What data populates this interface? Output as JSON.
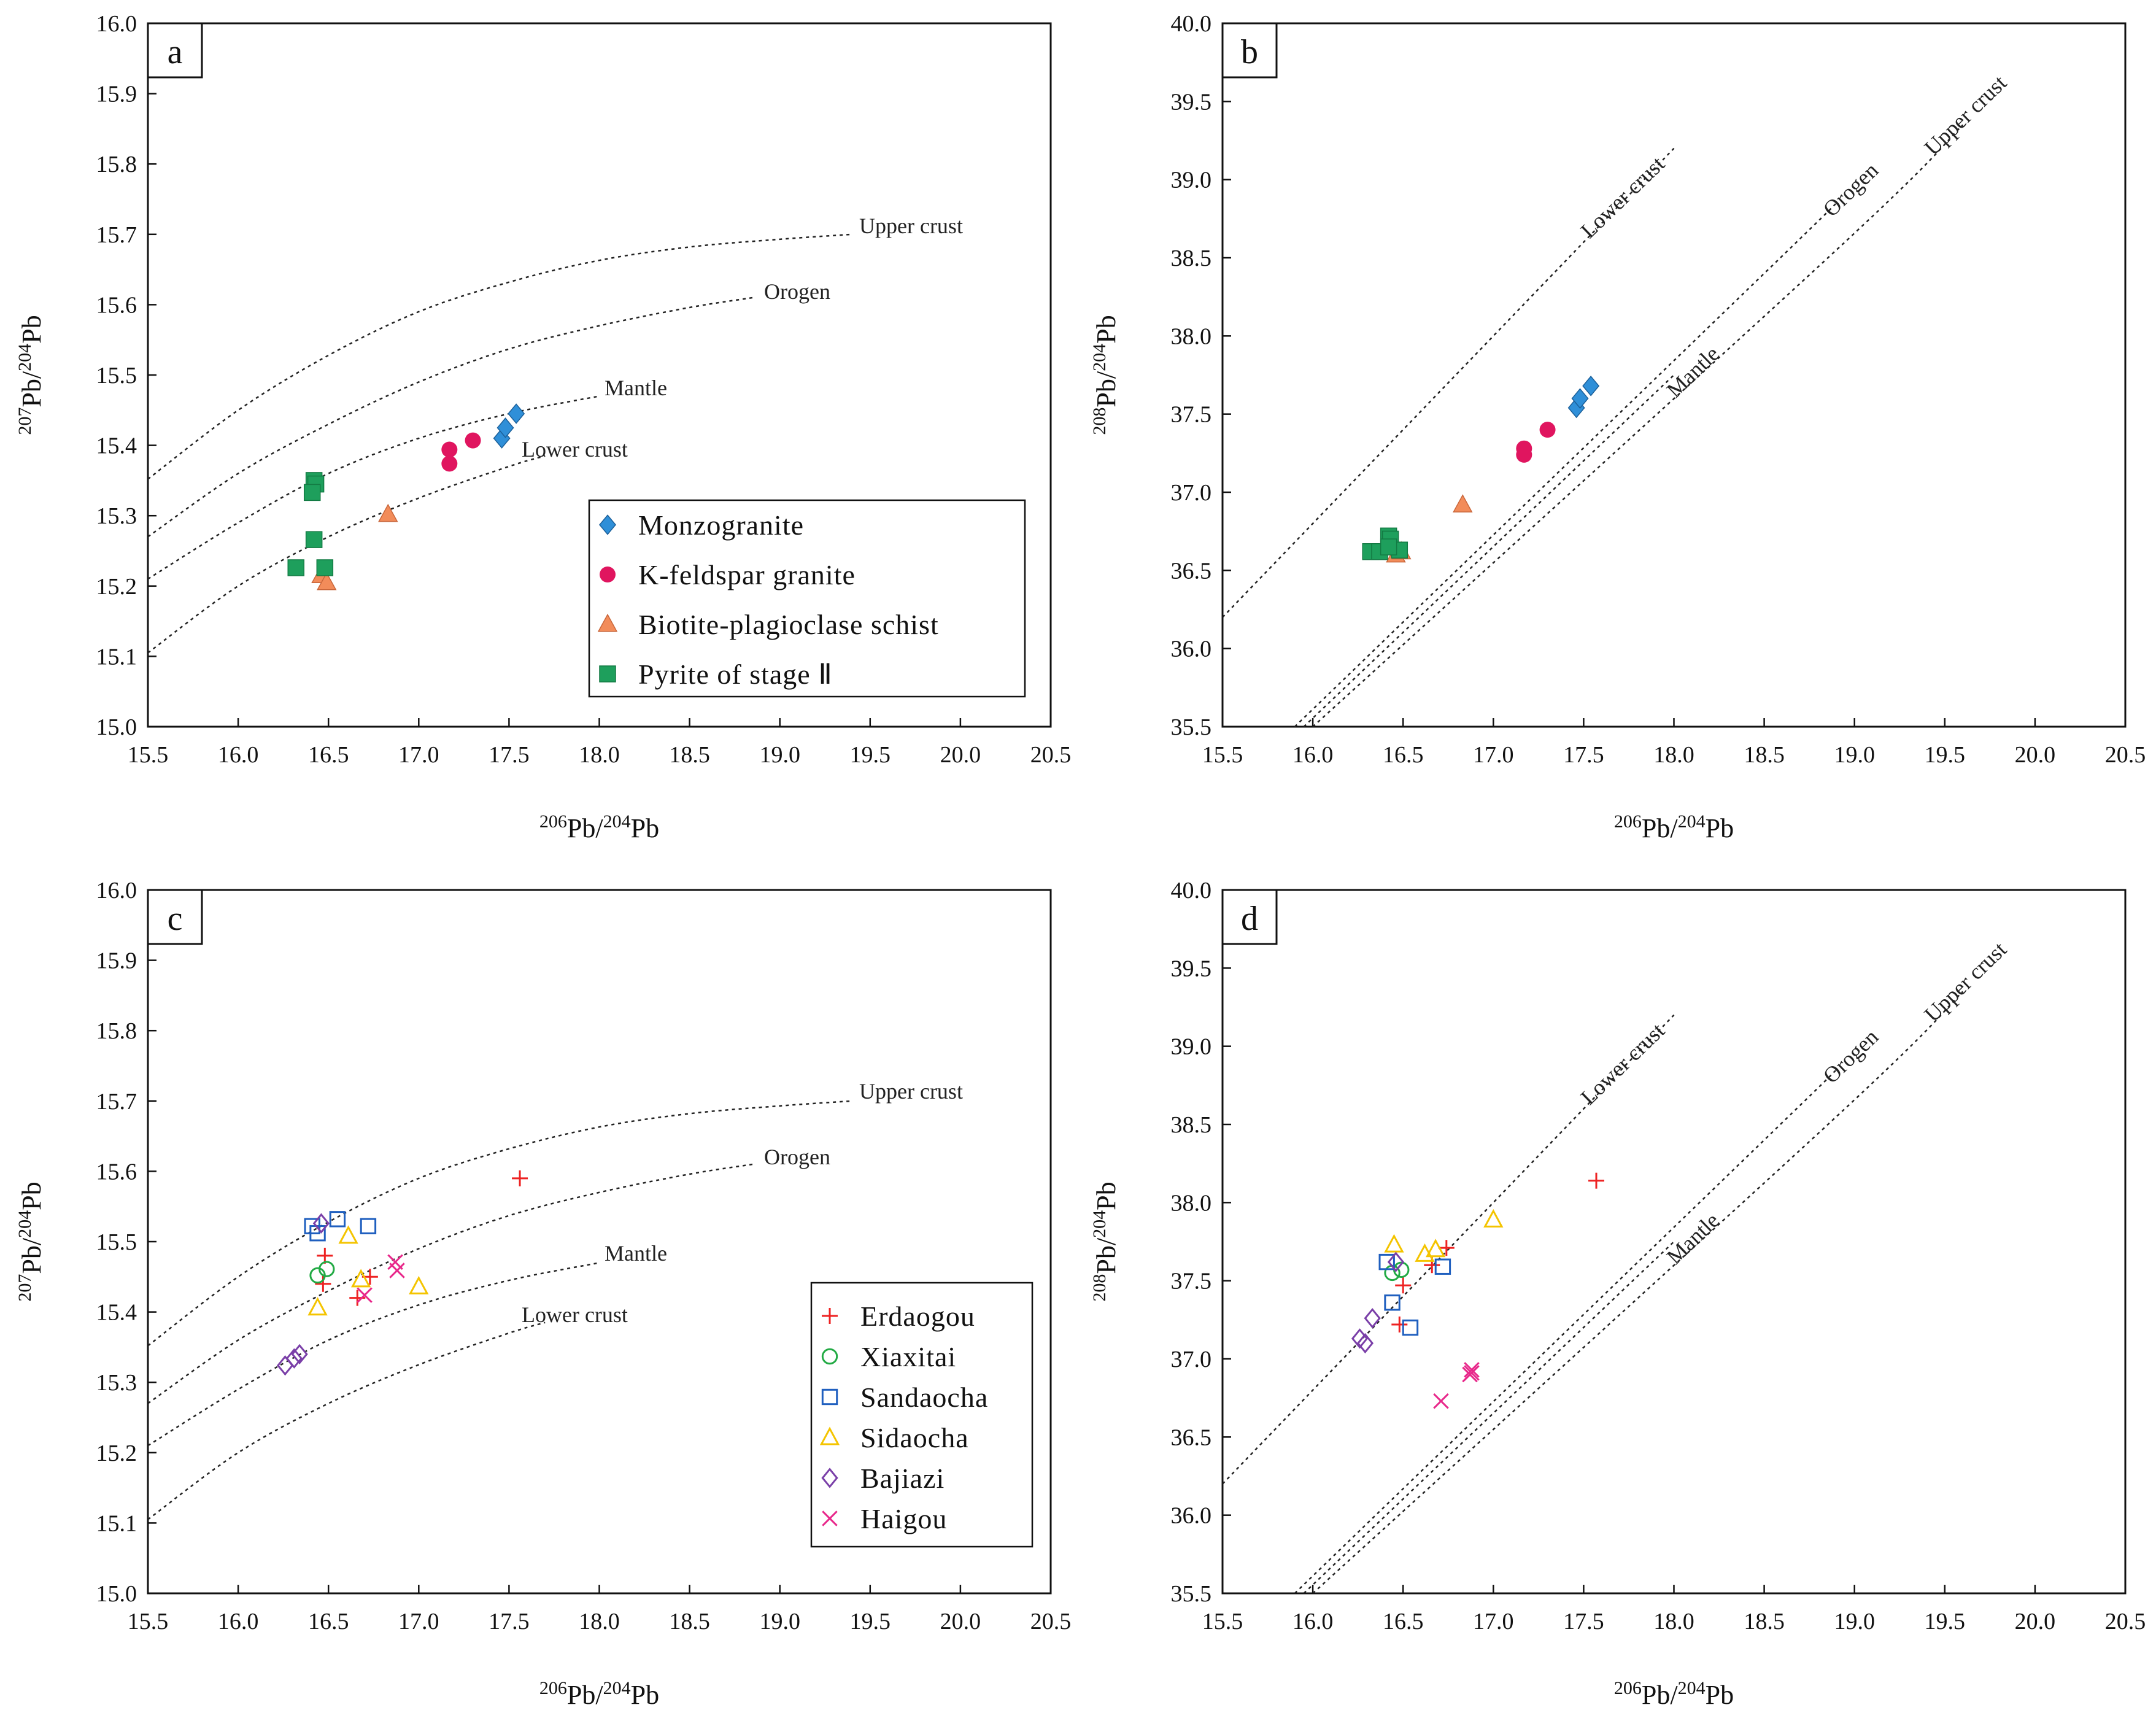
{
  "colors": {
    "monzogranite": "#2f8fd8",
    "kfeldspar": "#e0155f",
    "biotite": "#f28c5a",
    "pyrite": "#1e9f5c",
    "erdaogou": "#ee2222",
    "xiaxitai": "#22aa44",
    "sandaocha": "#1f5fbf",
    "sidaocha": "#f4c400",
    "bajiazi": "#7a3fa8",
    "haigou": "#e8278a"
  },
  "chart_data": [
    {
      "id": "a",
      "type": "scatter",
      "panel_label": "a",
      "x_label": {
        "sup1": "206",
        "base1": "Pb/",
        "sup2": "204",
        "base2": "Pb"
      },
      "y_label": {
        "sup1": "207",
        "base1": "Pb/",
        "sup2": "204",
        "base2": "Pb"
      },
      "xlim": [
        15.5,
        20.5
      ],
      "ylim": [
        15.0,
        16.0
      ],
      "x_ticks": [
        "15.5",
        "16.0",
        "16.5",
        "17.0",
        "17.5",
        "18.0",
        "18.5",
        "19.0",
        "19.5",
        "20.0",
        "20.5"
      ],
      "y_ticks": [
        "15.0",
        "15.1",
        "15.2",
        "15.3",
        "15.4",
        "15.5",
        "15.6",
        "15.7",
        "15.8",
        "15.9",
        "16.0"
      ],
      "reference_curves": [
        {
          "name": "Upper crust",
          "points": [
            [
              15.5,
              15.352
            ],
            [
              16.0,
              15.45
            ],
            [
              16.5,
              15.528
            ],
            [
              17.0,
              15.59
            ],
            [
              17.5,
              15.632
            ],
            [
              18.0,
              15.663
            ],
            [
              18.5,
              15.682
            ],
            [
              19.0,
              15.693
            ],
            [
              19.4,
              15.7
            ]
          ]
        },
        {
          "name": "Orogen",
          "points": [
            [
              15.5,
              15.27
            ],
            [
              16.0,
              15.36
            ],
            [
              16.5,
              15.43
            ],
            [
              17.0,
              15.49
            ],
            [
              17.5,
              15.537
            ],
            [
              18.0,
              15.57
            ],
            [
              18.5,
              15.596
            ],
            [
              18.85,
              15.61
            ]
          ]
        },
        {
          "name": "Mantle",
          "points": [
            [
              15.5,
              15.21
            ],
            [
              16.0,
              15.29
            ],
            [
              16.5,
              15.36
            ],
            [
              17.0,
              15.41
            ],
            [
              17.5,
              15.445
            ],
            [
              18.0,
              15.47
            ]
          ]
        },
        {
          "name": "Lower crust",
          "points": [
            [
              15.5,
              15.105
            ],
            [
              16.0,
              15.2
            ],
            [
              16.5,
              15.27
            ],
            [
              17.0,
              15.325
            ],
            [
              17.5,
              15.37
            ],
            [
              17.7,
              15.385
            ]
          ]
        }
      ],
      "series": [
        {
          "name": "Monzogranite",
          "marker": "diamond-filled",
          "color": "#2f8fd8",
          "x": [
            17.46,
            17.48,
            17.54
          ],
          "y": [
            15.41,
            15.425,
            15.445
          ]
        },
        {
          "name": "K-feldspar granite",
          "marker": "circle-filled",
          "color": "#e0155f",
          "x": [
            17.17,
            17.17,
            17.3
          ],
          "y": [
            15.394,
            15.374,
            15.407
          ]
        },
        {
          "name": "Biotite-plagioclase schist",
          "marker": "triangle-filled",
          "color": "#f28c5a",
          "x": [
            16.46,
            16.49,
            16.83
          ],
          "y": [
            15.215,
            15.205,
            15.302
          ]
        },
        {
          "name": "Pyrite of stage II",
          "marker": "square-filled",
          "color": "#1e9f5c",
          "x": [
            16.42,
            16.43,
            16.41,
            16.42,
            16.32,
            16.48
          ],
          "y": [
            15.35,
            15.345,
            15.333,
            15.266,
            15.226,
            15.226
          ]
        }
      ],
      "legend": [
        "Monzogranite",
        "K-feldspar granite",
        "Biotite-plagioclase schist",
        "Pyrite of stage Ⅱ"
      ]
    },
    {
      "id": "b",
      "type": "scatter",
      "panel_label": "b",
      "x_label": {
        "sup1": "206",
        "base1": "Pb/",
        "sup2": "204",
        "base2": "Pb"
      },
      "y_label": {
        "sup1": "208",
        "base1": "Pb/",
        "sup2": "204",
        "base2": "Pb"
      },
      "xlim": [
        15.5,
        20.5
      ],
      "ylim": [
        35.5,
        40.0
      ],
      "x_ticks": [
        "15.5",
        "16.0",
        "16.5",
        "17.0",
        "17.5",
        "18.0",
        "18.5",
        "19.0",
        "19.5",
        "20.0",
        "20.5"
      ],
      "y_ticks": [
        "35.5",
        "36.0",
        "36.5",
        "37.0",
        "37.5",
        "38.0",
        "38.5",
        "39.0",
        "39.5",
        "40.0"
      ],
      "reference_curves": [
        {
          "name": "Lower crust",
          "points": [
            [
              15.5,
              36.2
            ],
            [
              17.5,
              38.6
            ],
            [
              18.0,
              39.2
            ]
          ]
        },
        {
          "name": "Orogen",
          "points": [
            [
              15.9,
              35.5
            ],
            [
              18.5,
              38.4
            ],
            [
              18.9,
              38.85
            ]
          ]
        },
        {
          "name": "Mantle",
          "points": [
            [
              15.95,
              35.5
            ],
            [
              18.0,
              37.75
            ]
          ]
        },
        {
          "name": "Upper crust",
          "points": [
            [
              16.0,
              35.5
            ],
            [
              18.9,
              38.55
            ],
            [
              19.6,
              39.35
            ]
          ]
        }
      ],
      "series": [
        {
          "name": "Monzogranite",
          "marker": "diamond-filled",
          "color": "#2f8fd8",
          "x": [
            17.46,
            17.48,
            17.54
          ],
          "y": [
            37.54,
            37.6,
            37.68
          ]
        },
        {
          "name": "K-feldspar granite",
          "marker": "circle-filled",
          "color": "#e0155f",
          "x": [
            17.17,
            17.17,
            17.3
          ],
          "y": [
            37.28,
            37.24,
            37.4
          ]
        },
        {
          "name": "Biotite-plagioclase schist",
          "marker": "triangle-filled",
          "color": "#f28c5a",
          "x": [
            16.46,
            16.49,
            16.83
          ],
          "y": [
            36.6,
            36.62,
            36.92
          ]
        },
        {
          "name": "Pyrite of stage II",
          "marker": "square-filled",
          "color": "#1e9f5c",
          "x": [
            16.32,
            16.37,
            16.42,
            16.43,
            16.48,
            16.42
          ],
          "y": [
            36.62,
            36.62,
            36.72,
            36.7,
            36.63,
            36.65
          ]
        }
      ]
    },
    {
      "id": "c",
      "type": "scatter",
      "panel_label": "c",
      "x_label": {
        "sup1": "206",
        "base1": "Pb/",
        "sup2": "204",
        "base2": "Pb"
      },
      "y_label": {
        "sup1": "207",
        "base1": "Pb/",
        "sup2": "204",
        "base2": "Pb"
      },
      "xlim": [
        15.5,
        20.5
      ],
      "ylim": [
        15.0,
        16.0
      ],
      "x_ticks": [
        "15.5",
        "16.0",
        "16.5",
        "17.0",
        "17.5",
        "18.0",
        "18.5",
        "19.0",
        "19.5",
        "20.0",
        "20.5"
      ],
      "y_ticks": [
        "15.0",
        "15.1",
        "15.2",
        "15.3",
        "15.4",
        "15.5",
        "15.6",
        "15.7",
        "15.8",
        "15.9",
        "16.0"
      ],
      "reference_curves": [
        {
          "name": "Upper crust",
          "points": [
            [
              15.5,
              15.352
            ],
            [
              16.0,
              15.45
            ],
            [
              16.5,
              15.528
            ],
            [
              17.0,
              15.59
            ],
            [
              17.5,
              15.632
            ],
            [
              18.0,
              15.663
            ],
            [
              18.5,
              15.682
            ],
            [
              19.0,
              15.693
            ],
            [
              19.4,
              15.7
            ]
          ]
        },
        {
          "name": "Orogen",
          "points": [
            [
              15.5,
              15.27
            ],
            [
              16.0,
              15.36
            ],
            [
              16.5,
              15.43
            ],
            [
              17.0,
              15.49
            ],
            [
              17.5,
              15.537
            ],
            [
              18.0,
              15.57
            ],
            [
              18.5,
              15.596
            ],
            [
              18.85,
              15.61
            ]
          ]
        },
        {
          "name": "Mantle",
          "points": [
            [
              15.5,
              15.21
            ],
            [
              16.0,
              15.29
            ],
            [
              16.5,
              15.36
            ],
            [
              17.0,
              15.41
            ],
            [
              17.5,
              15.445
            ],
            [
              18.0,
              15.47
            ]
          ]
        },
        {
          "name": "Lower crust",
          "points": [
            [
              15.5,
              15.105
            ],
            [
              16.0,
              15.2
            ],
            [
              16.5,
              15.27
            ],
            [
              17.0,
              15.325
            ],
            [
              17.5,
              15.37
            ],
            [
              17.7,
              15.385
            ]
          ]
        }
      ],
      "series": [
        {
          "name": "Erdaogou",
          "marker": "plus",
          "color": "#ee2222",
          "x": [
            16.48,
            16.47,
            16.66,
            16.73,
            17.56
          ],
          "y": [
            15.48,
            15.44,
            15.42,
            15.45,
            15.59
          ]
        },
        {
          "name": "Xiaxitai",
          "marker": "circle-open",
          "color": "#22aa44",
          "x": [
            16.44,
            16.49
          ],
          "y": [
            15.452,
            15.461
          ]
        },
        {
          "name": "Sandaocha",
          "marker": "square-open",
          "color": "#1f5fbf",
          "x": [
            16.41,
            16.44,
            16.55,
            16.72
          ],
          "y": [
            15.522,
            15.512,
            15.532,
            15.522
          ]
        },
        {
          "name": "Sidaocha",
          "marker": "triangle-open",
          "color": "#f4c400",
          "x": [
            16.44,
            16.61,
            16.68,
            17.0
          ],
          "y": [
            15.406,
            15.508,
            15.446,
            15.436
          ]
        },
        {
          "name": "Bajiazi",
          "marker": "diamond-open",
          "color": "#7a3fa8",
          "x": [
            16.26,
            16.31,
            16.34,
            16.46
          ],
          "y": [
            15.324,
            15.334,
            15.34,
            15.526
          ]
        },
        {
          "name": "Haigou",
          "marker": "cross",
          "color": "#e8278a",
          "x": [
            16.7,
            16.87,
            16.88
          ],
          "y": [
            15.424,
            15.471,
            15.459
          ]
        }
      ],
      "legend": [
        "Erdaogou",
        "Xiaxitai",
        "Sandaocha",
        "Sidaocha",
        "Bajiazi",
        "Haigou"
      ]
    },
    {
      "id": "d",
      "type": "scatter",
      "panel_label": "d",
      "x_label": {
        "sup1": "206",
        "base1": "Pb/",
        "sup2": "204",
        "base2": "Pb"
      },
      "y_label": {
        "sup1": "208",
        "base1": "Pb/",
        "sup2": "204",
        "base2": "Pb"
      },
      "xlim": [
        15.5,
        20.5
      ],
      "ylim": [
        35.5,
        40.0
      ],
      "x_ticks": [
        "15.5",
        "16.0",
        "16.5",
        "17.0",
        "17.5",
        "18.0",
        "18.5",
        "19.0",
        "19.5",
        "20.0",
        "20.5"
      ],
      "y_ticks": [
        "35.5",
        "36.0",
        "36.5",
        "37.0",
        "37.5",
        "38.0",
        "38.5",
        "39.0",
        "39.5",
        "40.0"
      ],
      "reference_curves": [
        {
          "name": "Lower crust",
          "points": [
            [
              15.5,
              36.2
            ],
            [
              17.5,
              38.6
            ],
            [
              18.0,
              39.2
            ]
          ]
        },
        {
          "name": "Orogen",
          "points": [
            [
              15.9,
              35.5
            ],
            [
              18.5,
              38.4
            ],
            [
              18.9,
              38.85
            ]
          ]
        },
        {
          "name": "Mantle",
          "points": [
            [
              15.95,
              35.5
            ],
            [
              18.0,
              37.75
            ]
          ]
        },
        {
          "name": "Upper crust",
          "points": [
            [
              16.0,
              35.5
            ],
            [
              18.9,
              38.55
            ],
            [
              19.6,
              39.35
            ]
          ]
        }
      ],
      "series": [
        {
          "name": "Erdaogou",
          "marker": "plus",
          "color": "#ee2222",
          "x": [
            16.48,
            16.5,
            16.66,
            16.74,
            17.57
          ],
          "y": [
            37.22,
            37.47,
            37.6,
            37.71,
            38.14
          ]
        },
        {
          "name": "Xiaxitai",
          "marker": "circle-open",
          "color": "#22aa44",
          "x": [
            16.44,
            16.49
          ],
          "y": [
            37.55,
            37.57
          ]
        },
        {
          "name": "Sandaocha",
          "marker": "square-open",
          "color": "#1f5fbf",
          "x": [
            16.41,
            16.44,
            16.54,
            16.72
          ],
          "y": [
            37.62,
            37.36,
            37.2,
            37.59
          ]
        },
        {
          "name": "Sidaocha",
          "marker": "triangle-open",
          "color": "#f4c400",
          "x": [
            16.45,
            16.62,
            16.68,
            17.0
          ],
          "y": [
            37.73,
            37.67,
            37.7,
            37.89
          ]
        },
        {
          "name": "Bajiazi",
          "marker": "diamond-open",
          "color": "#7a3fa8",
          "x": [
            16.26,
            16.29,
            16.33,
            16.46
          ],
          "y": [
            37.13,
            37.1,
            37.26,
            37.62
          ]
        },
        {
          "name": "Haigou",
          "marker": "cross",
          "color": "#e8278a",
          "x": [
            16.71,
            16.87,
            16.88,
            16.88
          ],
          "y": [
            36.73,
            36.9,
            36.93,
            36.91
          ]
        }
      ]
    }
  ]
}
